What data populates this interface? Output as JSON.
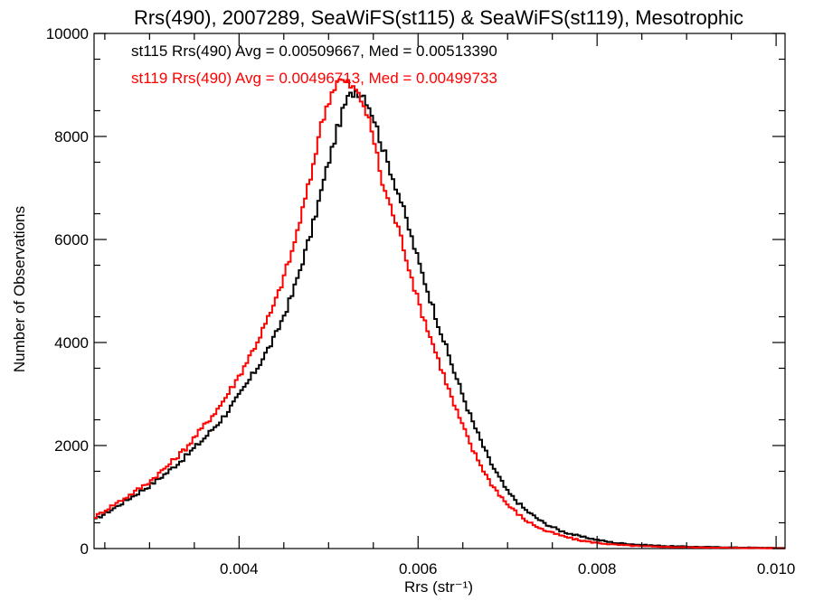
{
  "chart_data": {
    "type": "line",
    "step": true,
    "title": "Rrs(490), 2007289, SeaWiFS(st115) & SeaWiFS(st119), Mesotrophic",
    "xlabel": "Rrs (str⁻¹)",
    "ylabel": "Number of Observations",
    "xlim": [
      0.00238,
      0.0101
    ],
    "ylim": [
      0,
      10000
    ],
    "xticks": [
      0.004,
      0.006,
      0.008,
      0.01
    ],
    "xtick_labels": [
      "0.004",
      "0.006",
      "0.008",
      "0.010"
    ],
    "yticks": [
      0,
      2000,
      4000,
      6000,
      8000,
      10000
    ],
    "ytick_labels": [
      "0",
      "2000",
      "4000",
      "6000",
      "8000",
      "10000"
    ],
    "legend_position": "top-left",
    "series": [
      {
        "name": "st115",
        "label": "st115 Rrs(490) Avg = 0.00509667, Med = 0.00513390",
        "color": "#000000",
        "points": [
          [
            0.00238,
            550
          ],
          [
            0.0026,
            780
          ],
          [
            0.0028,
            1000
          ],
          [
            0.003,
            1220
          ],
          [
            0.0032,
            1480
          ],
          [
            0.0034,
            1780
          ],
          [
            0.0036,
            2120
          ],
          [
            0.0038,
            2500
          ],
          [
            0.004,
            2960
          ],
          [
            0.0042,
            3500
          ],
          [
            0.0044,
            4100
          ],
          [
            0.0046,
            4950
          ],
          [
            0.0048,
            6100
          ],
          [
            0.005,
            7500
          ],
          [
            0.0051,
            8150
          ],
          [
            0.0052,
            8700
          ],
          [
            0.0053,
            8900
          ],
          [
            0.0054,
            8800
          ],
          [
            0.0055,
            8400
          ],
          [
            0.0056,
            7800
          ],
          [
            0.0058,
            6800
          ],
          [
            0.006,
            5600
          ],
          [
            0.0062,
            4500
          ],
          [
            0.0064,
            3450
          ],
          [
            0.0066,
            2500
          ],
          [
            0.0068,
            1700
          ],
          [
            0.007,
            1100
          ],
          [
            0.0072,
            750
          ],
          [
            0.0074,
            500
          ],
          [
            0.0076,
            340
          ],
          [
            0.0078,
            240
          ],
          [
            0.008,
            170
          ],
          [
            0.0082,
            110
          ],
          [
            0.0085,
            70
          ],
          [
            0.0088,
            45
          ],
          [
            0.0092,
            30
          ],
          [
            0.0096,
            20
          ],
          [
            0.0101,
            10
          ]
        ]
      },
      {
        "name": "st119",
        "label": "st119 Rrs(490) Avg = 0.00496713, Med = 0.00499733",
        "color": "#ff0000",
        "points": [
          [
            0.00238,
            600
          ],
          [
            0.0026,
            850
          ],
          [
            0.0028,
            1060
          ],
          [
            0.003,
            1300
          ],
          [
            0.0032,
            1600
          ],
          [
            0.0034,
            1940
          ],
          [
            0.0036,
            2360
          ],
          [
            0.0038,
            2800
          ],
          [
            0.004,
            3350
          ],
          [
            0.0042,
            4000
          ],
          [
            0.0044,
            4750
          ],
          [
            0.0046,
            5800
          ],
          [
            0.0048,
            7200
          ],
          [
            0.0049,
            8100
          ],
          [
            0.005,
            8700
          ],
          [
            0.0051,
            9100
          ],
          [
            0.0052,
            9050
          ],
          [
            0.0053,
            8900
          ],
          [
            0.0054,
            8600
          ],
          [
            0.0055,
            8000
          ],
          [
            0.0056,
            7100
          ],
          [
            0.0058,
            6100
          ],
          [
            0.006,
            4800
          ],
          [
            0.0062,
            3800
          ],
          [
            0.0064,
            2800
          ],
          [
            0.0066,
            1950
          ],
          [
            0.0068,
            1300
          ],
          [
            0.007,
            850
          ],
          [
            0.0072,
            550
          ],
          [
            0.0074,
            360
          ],
          [
            0.0076,
            250
          ],
          [
            0.0078,
            160
          ],
          [
            0.008,
            110
          ],
          [
            0.0082,
            75
          ],
          [
            0.0085,
            45
          ],
          [
            0.0088,
            30
          ],
          [
            0.0092,
            20
          ],
          [
            0.0096,
            12
          ],
          [
            0.0101,
            5
          ]
        ]
      }
    ]
  }
}
